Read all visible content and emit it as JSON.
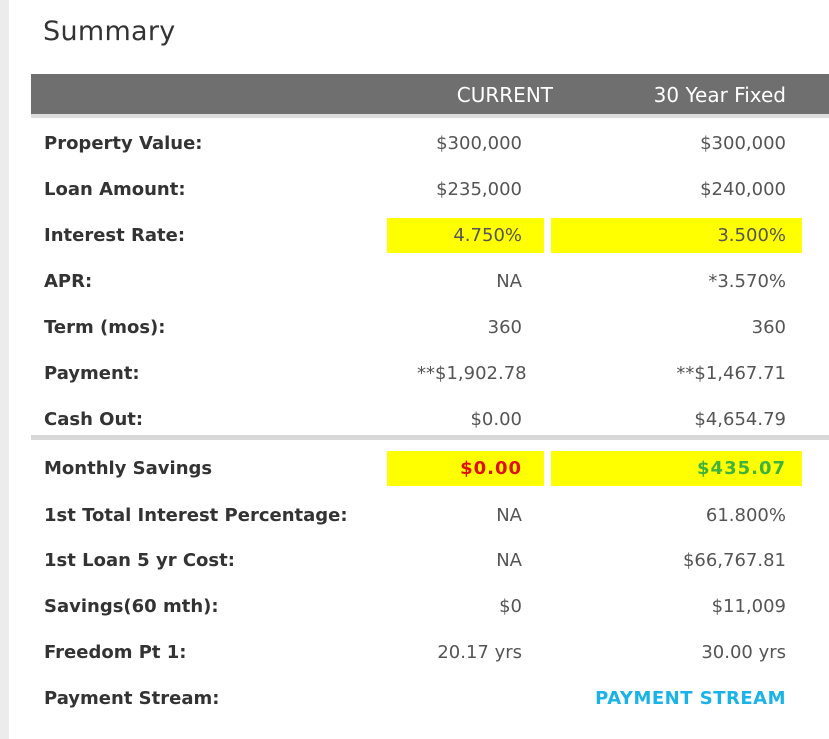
{
  "title": "Summary",
  "columns": {
    "current": "CURRENT",
    "option": "30 Year Fixed"
  },
  "rows_top": [
    {
      "label": "Property Value:",
      "current": "$300,000",
      "option": "$300,000"
    },
    {
      "label": "Loan Amount:",
      "current": "$235,000",
      "option": "$240,000"
    },
    {
      "label": "Interest Rate:",
      "current": "4.750%",
      "option": "3.500%"
    },
    {
      "label": "APR:",
      "current": "NA",
      "option": "*3.570%"
    },
    {
      "label": "Term (mos):",
      "current": "360",
      "option": "360"
    },
    {
      "label": "Payment:",
      "current": "**$1,902.78",
      "option": "**$1,467.71"
    },
    {
      "label": "Cash Out:",
      "current": "$0.00",
      "option": "$4,654.79"
    }
  ],
  "rows_bottom": [
    {
      "label": "Monthly Savings",
      "current": "$0.00",
      "option": "$435.07"
    },
    {
      "label": "1st Total Interest Percentage:",
      "current": "NA",
      "option": "61.800%"
    },
    {
      "label": "1st Loan 5 yr Cost:",
      "current": "NA",
      "option": "$66,767.81"
    },
    {
      "label": "Savings(60 mth):",
      "current": "$0",
      "option": "$11,009"
    },
    {
      "label": "Freedom Pt 1:",
      "current": "20.17 yrs",
      "option": "30.00 yrs"
    },
    {
      "label": "Payment Stream:",
      "current": "",
      "option": "PAYMENT STREAM"
    }
  ],
  "colors": {
    "highlight": "#ffff00",
    "header": "#6f6f6f",
    "negative": "#e01010",
    "positive": "#3fb23f",
    "link": "#1ab3e8"
  }
}
